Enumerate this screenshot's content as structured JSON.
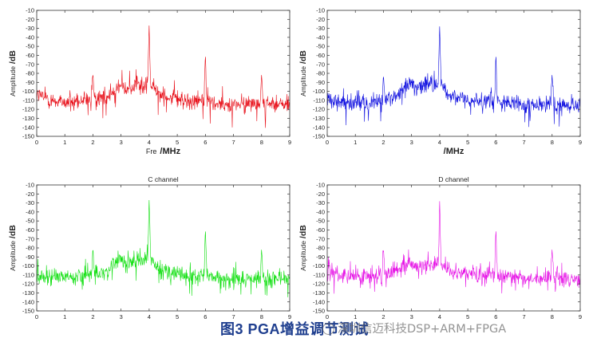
{
  "caption": "图3  PGA增益调节测试",
  "watermark": "深圳信迈科技DSP+ARM+FPGA",
  "chart_data": [
    {
      "type": "line",
      "title": "",
      "xlabel": "Fre",
      "xlabel_unit": "/MHz",
      "ylabel": "Amplitude",
      "ylabel_unit": "/dB",
      "xlim": [
        0,
        9
      ],
      "ylim": [
        -150,
        -10
      ],
      "xticks": [
        0,
        1,
        2,
        3,
        4,
        5,
        6,
        7,
        8,
        9
      ],
      "yticks": [
        -10,
        -20,
        -30,
        -40,
        -50,
        -60,
        -70,
        -80,
        -90,
        -100,
        -110,
        -120,
        -130,
        -140,
        -150
      ],
      "grid": false,
      "color": "#e8101a",
      "series": [
        {
          "values": [
            [
              0,
              -103
            ],
            [
              0.5,
              -110
            ],
            [
              1,
              -112
            ],
            [
              1.5,
              -113
            ],
            [
              1.95,
              -108
            ],
            [
              2,
              -79
            ],
            [
              2.05,
              -109
            ],
            [
              2.5,
              -106
            ],
            [
              2.7,
              -99
            ],
            [
              2.9,
              -94
            ],
            [
              3.2,
              -99
            ],
            [
              3.5,
              -91
            ],
            [
              3.8,
              -97
            ],
            [
              3.95,
              -90
            ],
            [
              4,
              -25
            ],
            [
              4.05,
              -92
            ],
            [
              4.3,
              -103
            ],
            [
              4.6,
              -105
            ],
            [
              5,
              -108
            ],
            [
              5.5,
              -112
            ],
            [
              5.95,
              -110
            ],
            [
              6,
              -57
            ],
            [
              6.05,
              -111
            ],
            [
              6.5,
              -113
            ],
            [
              7,
              -115
            ],
            [
              7.5,
              -114
            ],
            [
              7.95,
              -113
            ],
            [
              8,
              -80
            ],
            [
              8.05,
              -114
            ],
            [
              8.5,
              -114
            ],
            [
              9,
              -113
            ]
          ]
        }
      ]
    },
    {
      "type": "line",
      "title": "",
      "xlabel": "",
      "xlabel_unit": "/MHz",
      "ylabel": "Amplitude",
      "ylabel_unit": "/dB",
      "xlim": [
        0,
        9
      ],
      "ylim": [
        -150,
        -10
      ],
      "xticks": [
        0,
        1,
        2,
        3,
        4,
        5,
        6,
        7,
        8,
        9
      ],
      "yticks": [
        -10,
        -20,
        -30,
        -40,
        -50,
        -60,
        -70,
        -80,
        -90,
        -100,
        -110,
        -120,
        -130,
        -140,
        -150
      ],
      "grid": false,
      "color": "#1010e0",
      "series": [
        {
          "values": [
            [
              0,
              -110
            ],
            [
              0.5,
              -112
            ],
            [
              1,
              -113
            ],
            [
              1.5,
              -114
            ],
            [
              1.95,
              -110
            ],
            [
              2,
              -81
            ],
            [
              2.05,
              -110
            ],
            [
              2.5,
              -105
            ],
            [
              2.7,
              -99
            ],
            [
              2.9,
              -92
            ],
            [
              3.2,
              -98
            ],
            [
              3.5,
              -91
            ],
            [
              3.8,
              -95
            ],
            [
              3.95,
              -91
            ],
            [
              4,
              -26
            ],
            [
              4.05,
              -92
            ],
            [
              4.3,
              -104
            ],
            [
              4.6,
              -107
            ],
            [
              5,
              -110
            ],
            [
              5.5,
              -112
            ],
            [
              5.95,
              -111
            ],
            [
              6,
              -57
            ],
            [
              6.05,
              -112
            ],
            [
              6.5,
              -114
            ],
            [
              7,
              -116
            ],
            [
              7.5,
              -115
            ],
            [
              7.95,
              -114
            ],
            [
              8,
              -80
            ],
            [
              8.05,
              -115
            ],
            [
              8.5,
              -116
            ],
            [
              9,
              -115
            ]
          ]
        }
      ]
    },
    {
      "type": "line",
      "title": "C channel",
      "xlabel": "",
      "xlabel_unit": "",
      "ylabel": "Amplitude",
      "ylabel_unit": "/dB",
      "xlim": [
        0,
        9
      ],
      "ylim": [
        -150,
        -10
      ],
      "xticks": [
        0,
        1,
        2,
        3,
        4,
        5,
        6,
        7,
        8,
        9
      ],
      "yticks": [
        -10,
        -20,
        -30,
        -40,
        -50,
        -60,
        -70,
        -80,
        -90,
        -100,
        -110,
        -120,
        -130,
        -140,
        -150
      ],
      "grid": false,
      "color": "#12e012",
      "series": [
        {
          "values": [
            [
              0,
              -110
            ],
            [
              0.5,
              -112
            ],
            [
              1,
              -112
            ],
            [
              1.5,
              -113
            ],
            [
              1.95,
              -110
            ],
            [
              2,
              -79
            ],
            [
              2.05,
              -110
            ],
            [
              2.5,
              -106
            ],
            [
              2.7,
              -98
            ],
            [
              2.9,
              -92
            ],
            [
              3.2,
              -97
            ],
            [
              3.5,
              -93
            ],
            [
              3.8,
              -95
            ],
            [
              3.95,
              -88
            ],
            [
              4,
              -25
            ],
            [
              4.05,
              -90
            ],
            [
              4.3,
              -104
            ],
            [
              4.6,
              -106
            ],
            [
              5,
              -110
            ],
            [
              5.5,
              -112
            ],
            [
              5.95,
              -112
            ],
            [
              6,
              -57
            ],
            [
              6.05,
              -112
            ],
            [
              6.5,
              -114
            ],
            [
              7,
              -116
            ],
            [
              7.5,
              -115
            ],
            [
              7.95,
              -115
            ],
            [
              8,
              -80
            ],
            [
              8.05,
              -115
            ],
            [
              8.5,
              -115
            ],
            [
              9,
              -114
            ]
          ]
        }
      ]
    },
    {
      "type": "line",
      "title": "D channel",
      "xlabel": "",
      "xlabel_unit": "",
      "ylabel": "Amplitude",
      "ylabel_unit": "/dB",
      "xlim": [
        0,
        9
      ],
      "ylim": [
        -150,
        -10
      ],
      "xticks": [
        0,
        1,
        2,
        3,
        4,
        5,
        6,
        7,
        8,
        9
      ],
      "yticks": [
        -10,
        -20,
        -30,
        -40,
        -50,
        -60,
        -70,
        -80,
        -90,
        -100,
        -110,
        -120,
        -130,
        -140,
        -150
      ],
      "grid": false,
      "color": "#e614e6",
      "series": [
        {
          "values": [
            [
              0,
              -107
            ],
            [
              0.5,
              -110
            ],
            [
              1,
              -111
            ],
            [
              1.5,
              -112
            ],
            [
              1.95,
              -109
            ],
            [
              2,
              -80
            ],
            [
              2.05,
              -109
            ],
            [
              2.5,
              -105
            ],
            [
              2.7,
              -101
            ],
            [
              2.9,
              -98
            ],
            [
              3.2,
              -101
            ],
            [
              3.5,
              -99
            ],
            [
              3.8,
              -100
            ],
            [
              3.95,
              -97
            ],
            [
              4,
              -26
            ],
            [
              4.05,
              -98
            ],
            [
              4.3,
              -105
            ],
            [
              4.6,
              -107
            ],
            [
              5,
              -109
            ],
            [
              5.5,
              -111
            ],
            [
              5.95,
              -111
            ],
            [
              6,
              -57
            ],
            [
              6.05,
              -111
            ],
            [
              6.5,
              -113
            ],
            [
              7,
              -114
            ],
            [
              7.5,
              -114
            ],
            [
              7.95,
              -114
            ],
            [
              8,
              -80
            ],
            [
              8.05,
              -115
            ],
            [
              8.5,
              -115
            ],
            [
              9,
              -116
            ]
          ]
        }
      ]
    }
  ]
}
